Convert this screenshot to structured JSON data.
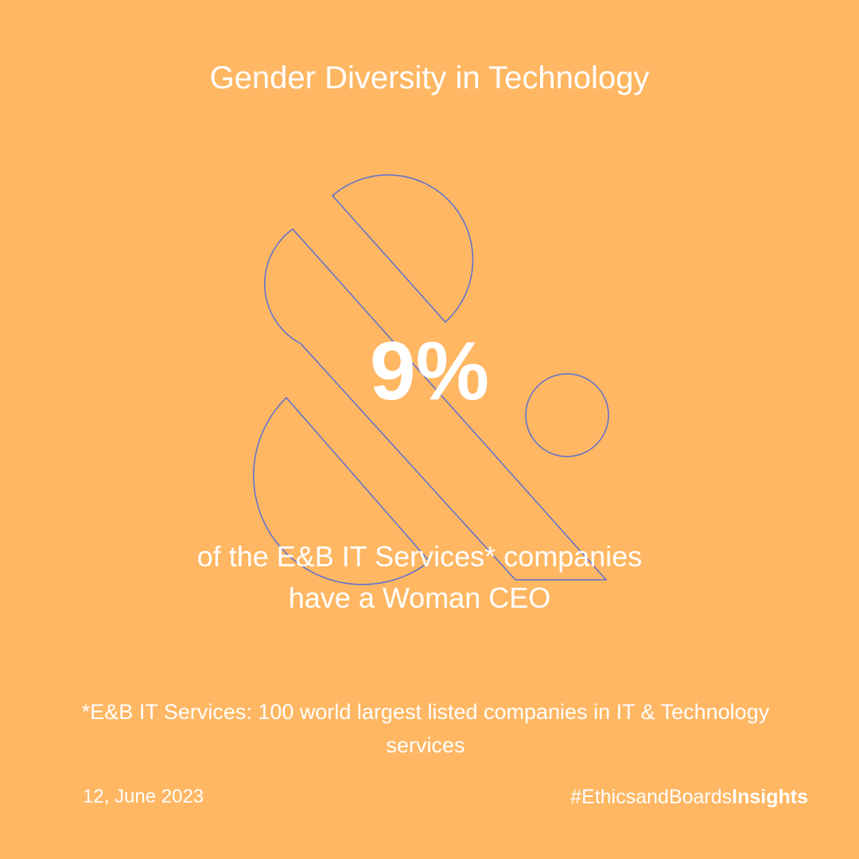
{
  "title": "Gender Diversity in Technology",
  "stat": "9%",
  "description": [
    "of the E&B IT Services* companies",
    "have a Woman CEO"
  ],
  "footnote": "*E&B IT Services: 100 world largest listed companies in IT & Technology services",
  "footer": {
    "date": "12, June 2023",
    "hashtag": {
      "prefix": "#EthicsandBoards",
      "suffix": "Insights"
    }
  }
}
